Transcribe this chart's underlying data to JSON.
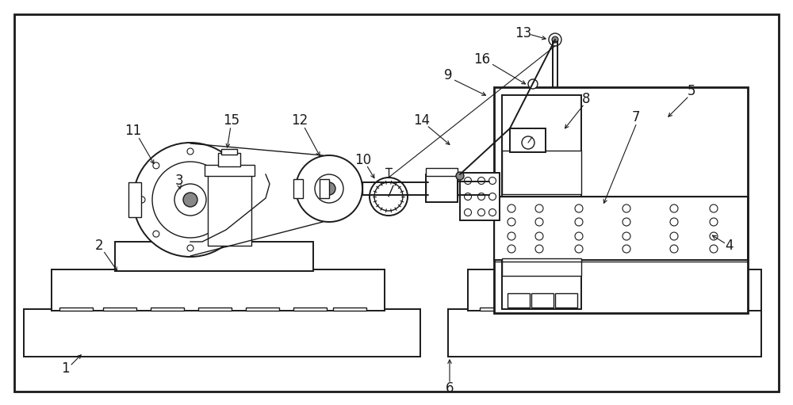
{
  "bg_color": "#ffffff",
  "line_color": "#1a1a1a",
  "fig_width": 10.0,
  "fig_height": 5.11,
  "border_color": "#c8c8c8"
}
